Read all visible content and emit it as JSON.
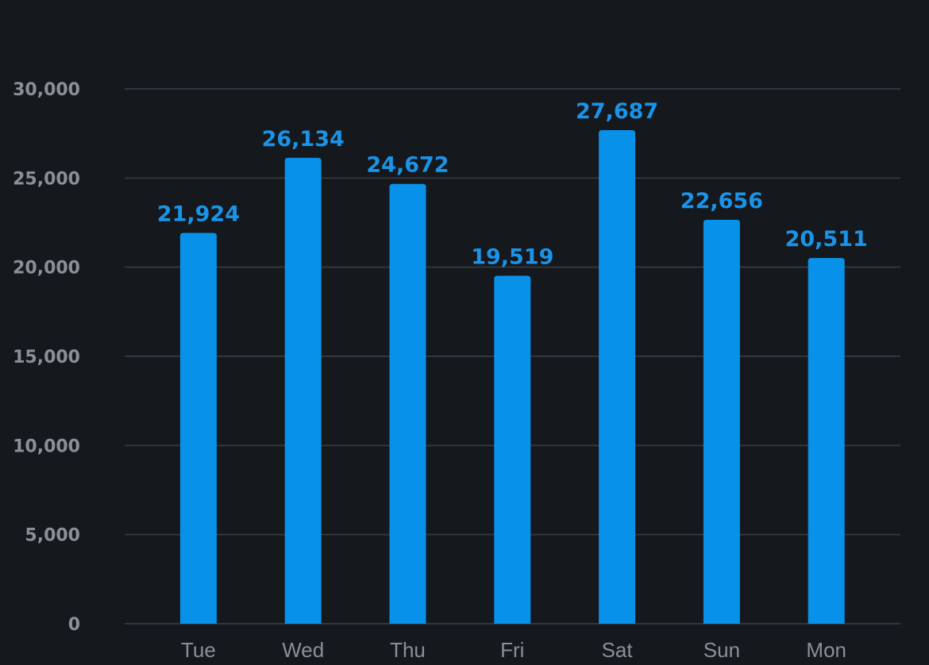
{
  "chart_data": {
    "type": "bar",
    "categories": [
      "Tue",
      "Wed",
      "Thu",
      "Fri",
      "Sat",
      "Sun",
      "Mon"
    ],
    "values": [
      21924,
      26134,
      24672,
      19519,
      27687,
      22656,
      20511
    ],
    "data_labels": [
      "21,924",
      "26,134",
      "24,672",
      "19,519",
      "27,687",
      "22,656",
      "20,511"
    ],
    "y_ticks": [
      0,
      5000,
      10000,
      15000,
      20000,
      25000,
      30000
    ],
    "y_tick_labels": [
      "0",
      "5,000",
      "10,000",
      "15,000",
      "20,000",
      "25,000",
      "30,000"
    ],
    "ylim": [
      0,
      30000
    ],
    "title": "",
    "xlabel": "",
    "ylabel": "",
    "grid": true,
    "legend": "none",
    "colors": {
      "background": "#15181d",
      "bar": "#0891e8",
      "data_label": "#1a94e8",
      "axis_text": "#8b9098",
      "grid": "#33373d"
    }
  }
}
